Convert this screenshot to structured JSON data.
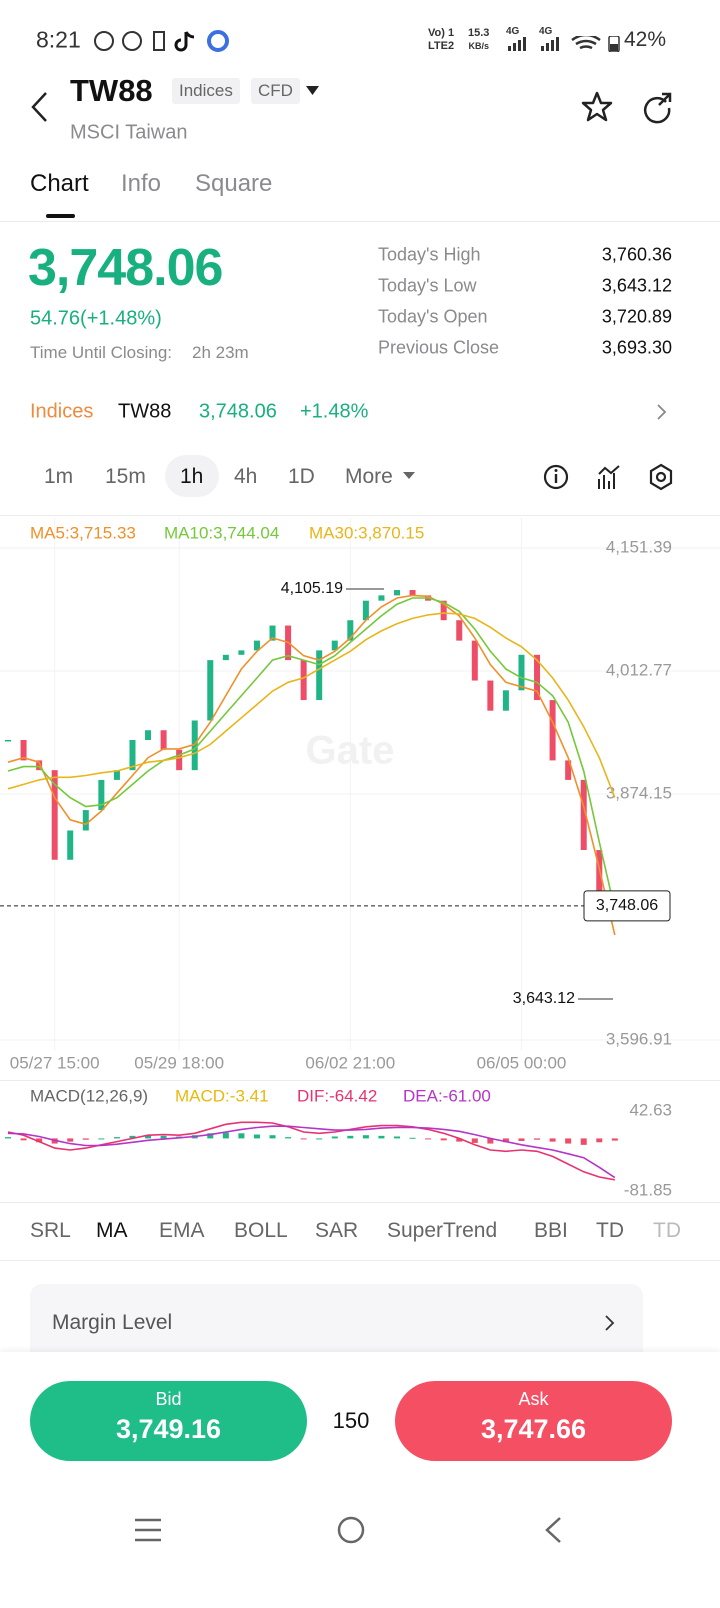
{
  "status_bar": {
    "time": "8:21",
    "network": [
      "Vo) 1",
      "LTE2"
    ],
    "speed": "15.3",
    "speed_unit": "KB/s",
    "signal": [
      "4G",
      "4G"
    ],
    "battery": "42%"
  },
  "header": {
    "symbol": "TW88",
    "tags": [
      "Indices",
      "CFD"
    ],
    "name": "MSCI Taiwan"
  },
  "tabs": [
    "Chart",
    "Info",
    "Square"
  ],
  "quote": {
    "price": "3,748.06",
    "change": "54.76(+1.48%)",
    "closing_label": "Time Until Closing:",
    "closing_value": "2h 23m",
    "stats": [
      {
        "label": "Today's High",
        "value": "3,760.36"
      },
      {
        "label": "Today's Low",
        "value": "3,643.12"
      },
      {
        "label": "Today's Open",
        "value": "3,720.89"
      },
      {
        "label": "Previous Close",
        "value": "3,693.30"
      }
    ]
  },
  "ticker_row": {
    "category": "Indices",
    "symbol": "TW88",
    "price": "3,748.06",
    "change": "+1.48%"
  },
  "intervals": [
    "1m",
    "15m",
    "1h",
    "4h",
    "1D",
    "More"
  ],
  "chart_data": [
    {
      "type": "candlestick",
      "watermark": "Gate",
      "categories": [
        null,
        null,
        null,
        "05/27 15:00",
        null,
        null,
        null,
        null,
        null,
        null,
        null,
        "05/29 18:00",
        null,
        null,
        null,
        null,
        null,
        null,
        null,
        null,
        null,
        null,
        "06/02 21:00",
        null,
        null,
        null,
        null,
        null,
        null,
        null,
        null,
        null,
        null,
        "06/05 00:00",
        null,
        null,
        null,
        null,
        null,
        null
      ],
      "up_color": "#20b486",
      "down_color": "#ee4d67",
      "closes": [
        3935,
        3912,
        3901,
        3800,
        3833,
        3856,
        3890,
        3901,
        3935,
        3946,
        3924,
        3901,
        3957,
        4025,
        4031,
        4036,
        4047,
        4064,
        4025,
        3980,
        4036,
        4047,
        4070,
        4092,
        4098,
        4104,
        4098,
        4092,
        4070,
        4047,
        4002,
        3968,
        3991,
        4031,
        3980,
        3912,
        3890,
        3811,
        3765,
        3748.06
      ],
      "series": [
        {
          "label": "MA5:3,715.33",
          "color": "#f0902a",
          "values": [
            3910,
            3915,
            3910,
            3870,
            3845,
            3840,
            3855,
            3875,
            3895,
            3915,
            3925,
            3925,
            3930,
            3955,
            3985,
            4015,
            4035,
            4050,
            4045,
            4030,
            4025,
            4035,
            4050,
            4070,
            4085,
            4095,
            4098,
            4097,
            4088,
            4075,
            4050,
            4020,
            4000,
            3995,
            3990,
            3955,
            3915,
            3860,
            3790,
            3715.33
          ]
        },
        {
          "label": "MA10:3,744.04",
          "color": "#74c83a",
          "values": [
            3900,
            3905,
            3905,
            3885,
            3870,
            3860,
            3862,
            3870,
            3885,
            3900,
            3912,
            3918,
            3925,
            3945,
            3965,
            3985,
            4005,
            4025,
            4030,
            4025,
            4020,
            4030,
            4045,
            4060,
            4075,
            4088,
            4095,
            4095,
            4090,
            4080,
            4060,
            4035,
            4015,
            4005,
            4000,
            3985,
            3955,
            3900,
            3820,
            3744.04
          ]
        },
        {
          "label": "MA30:3,870.15",
          "color": "#e9b51a",
          "values": [
            3880,
            3885,
            3890,
            3893,
            3893,
            3895,
            3898,
            3900,
            3905,
            3910,
            3912,
            3915,
            3920,
            3930,
            3945,
            3960,
            3975,
            3990,
            4000,
            4005,
            4015,
            4025,
            4035,
            4048,
            4058,
            4066,
            4072,
            4076,
            4078,
            4077,
            4072,
            4062,
            4050,
            4040,
            4025,
            4005,
            3980,
            3950,
            3915,
            3870.15
          ]
        }
      ],
      "high_mark": {
        "value": 4105.19,
        "label": "4,105.19"
      },
      "low_mark": {
        "value": 3643.12,
        "label": "3,643.12"
      },
      "last_price": {
        "value": 3748.06,
        "label": "3,748.06"
      },
      "ylim": [
        3585.6,
        4185.2
      ],
      "yticks": [
        {
          "value": 4151.39,
          "label": "4,151.39"
        },
        {
          "value": 4012.77,
          "label": "4,012.77"
        },
        {
          "value": 3874.15,
          "label": "3,874.15"
        },
        {
          "value": 3596.91,
          "label": "3,596.91"
        }
      ],
      "grid": true
    },
    {
      "type": "macd",
      "title": "MACD(12,26,9)",
      "histogram": {
        "label": "MACD:-3.41",
        "color": "#e8b90e",
        "up_color": "#20b486",
        "down_color": "#ee4d67",
        "values": [
          2,
          -3,
          -6,
          -8,
          -5,
          -2,
          0,
          2,
          4,
          5,
          4,
          3,
          5,
          8,
          9,
          8,
          6,
          5,
          2,
          -1,
          0,
          3,
          4,
          5,
          4,
          3,
          1,
          -1,
          -3,
          -5,
          -7,
          -8,
          -6,
          -4,
          -2,
          -5,
          -8,
          -10,
          -6,
          -3.41
        ]
      },
      "series": [
        {
          "label": "DIF:-64.42",
          "color": "#e8336f",
          "values": [
            10,
            5,
            -5,
            -15,
            -18,
            -15,
            -10,
            -5,
            0,
            5,
            6,
            5,
            8,
            15,
            22,
            25,
            25,
            24,
            18,
            10,
            8,
            10,
            14,
            18,
            20,
            20,
            18,
            14,
            8,
            0,
            -10,
            -18,
            -20,
            -18,
            -20,
            -28,
            -40,
            -52,
            -60,
            -64.42
          ]
        },
        {
          "label": "DEA:-61.00",
          "color": "#b534c9",
          "values": [
            8,
            7,
            3,
            -3,
            -8,
            -11,
            -11,
            -9,
            -6,
            -3,
            -1,
            1,
            3,
            6,
            10,
            14,
            17,
            19,
            19,
            17,
            15,
            13,
            13,
            14,
            16,
            17,
            17,
            16,
            14,
            11,
            6,
            0,
            -5,
            -10,
            -14,
            -18,
            -24,
            -30,
            -45,
            -61
          ]
        }
      ],
      "ylim": [
        -95.8,
        83.1
      ],
      "yticks": [
        42.63,
        -81.85
      ]
    }
  ],
  "indicators": [
    "SRL",
    "MA",
    "EMA",
    "BOLL",
    "SAR",
    "SuperTrend",
    "BBI",
    "TD",
    "TD"
  ],
  "margin": "Margin Level",
  "trade": {
    "bid_label": "Bid",
    "bid": "3,749.16",
    "quantity": "150",
    "ask_label": "Ask",
    "ask": "3,747.66"
  }
}
